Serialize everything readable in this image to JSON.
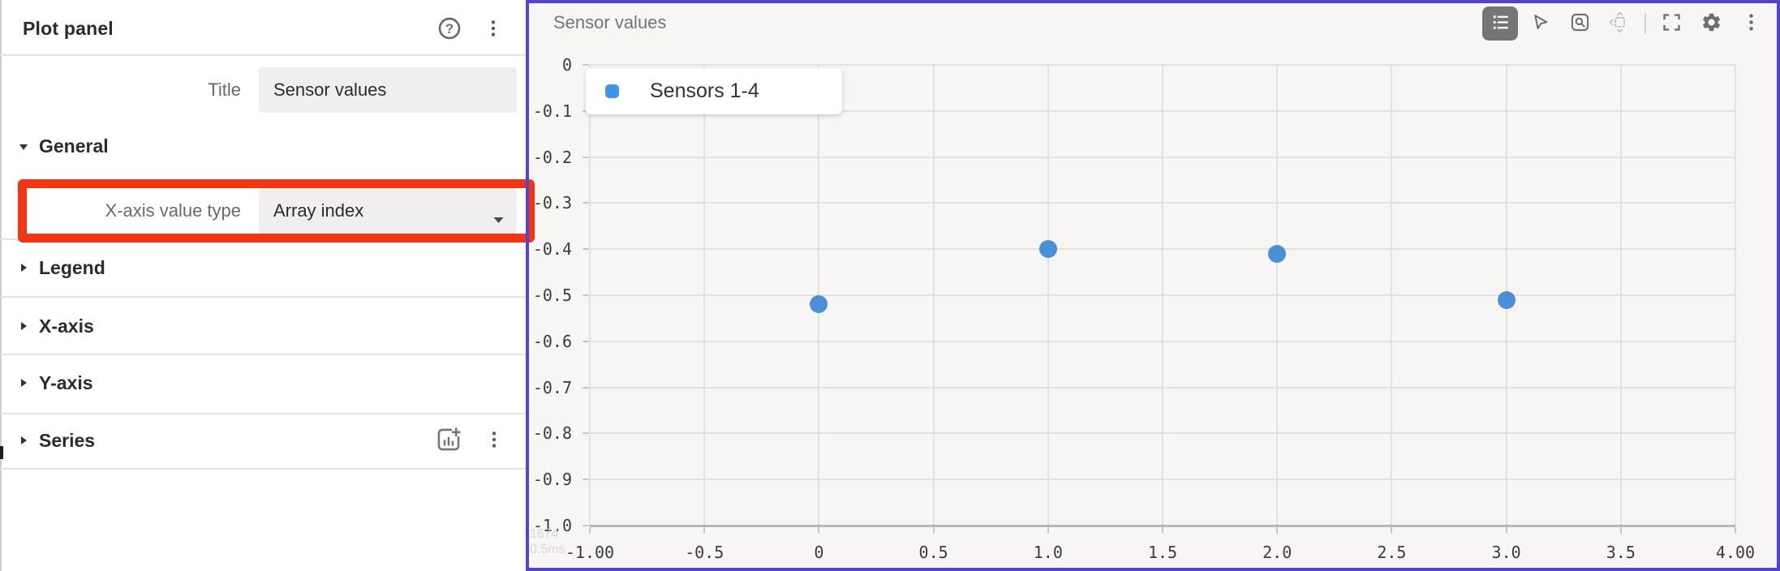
{
  "sidebar": {
    "title": "Plot panel",
    "header_icons": [
      "help-icon",
      "more-icon"
    ],
    "title_field": {
      "label": "Title",
      "value": "Sensor values"
    },
    "general": {
      "label": "General",
      "x_axis_value_type": {
        "label": "X-axis value type",
        "value": "Array index"
      }
    },
    "sections": {
      "legend": "Legend",
      "x_axis": "X-axis",
      "y_axis": "Y-axis",
      "series": "Series"
    }
  },
  "annotation": {
    "highlight_color": "#f43515"
  },
  "plot": {
    "title": "Sensor values",
    "selected_border_color": "#5243d2",
    "toolbar": [
      "legend-toggle",
      "select-cursor",
      "zoom-select",
      "pan",
      "fit-view",
      "settings",
      "more"
    ],
    "legend_overlay": {
      "label": "Sensors 1-4",
      "swatch_color": "#4196e3"
    },
    "perf_stats": [
      "1674",
      "0.5ms"
    ]
  },
  "chart_data": {
    "type": "scatter",
    "title": "Sensor values",
    "series": [
      {
        "name": "Sensors 1-4",
        "color": "#4a90d8",
        "points": [
          {
            "x": 0,
            "y": -0.52
          },
          {
            "x": 1,
            "y": -0.4
          },
          {
            "x": 2,
            "y": -0.41
          },
          {
            "x": 3,
            "y": -0.51
          }
        ]
      }
    ],
    "xlim": [
      -1,
      4
    ],
    "ylim": [
      -1,
      0
    ],
    "x_ticks": [
      {
        "v": -1,
        "label": "-1.00"
      },
      {
        "v": -0.5,
        "label": "-0.5"
      },
      {
        "v": 0,
        "label": "0"
      },
      {
        "v": 0.5,
        "label": "0.5"
      },
      {
        "v": 1,
        "label": "1.0"
      },
      {
        "v": 1.5,
        "label": "1.5"
      },
      {
        "v": 2,
        "label": "2.0"
      },
      {
        "v": 2.5,
        "label": "2.5"
      },
      {
        "v": 3,
        "label": "3.0"
      },
      {
        "v": 3.5,
        "label": "3.5"
      },
      {
        "v": 4,
        "label": "4.00"
      }
    ],
    "y_ticks": [
      {
        "v": 0,
        "label": "0"
      },
      {
        "v": -0.1,
        "label": "-0.1"
      },
      {
        "v": -0.2,
        "label": "-0.2"
      },
      {
        "v": -0.3,
        "label": "-0.3"
      },
      {
        "v": -0.4,
        "label": "-0.4"
      },
      {
        "v": -0.5,
        "label": "-0.5"
      },
      {
        "v": -0.6,
        "label": "-0.6"
      },
      {
        "v": -0.7,
        "label": "-0.7"
      },
      {
        "v": -0.8,
        "label": "-0.8"
      },
      {
        "v": -0.9,
        "label": "-0.9"
      },
      {
        "v": -1,
        "label": "-1.0"
      }
    ],
    "grid": true,
    "legend_position": "top-left"
  }
}
